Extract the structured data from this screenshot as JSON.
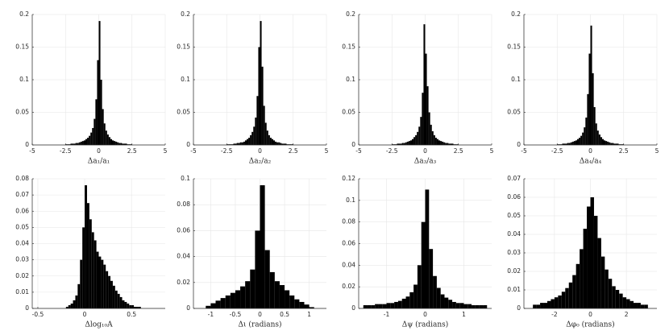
{
  "chart_data": [
    {
      "type": "histogram",
      "xlabel": "Δa₁/a₁",
      "color": "#000000",
      "grid": true,
      "xlim": [
        -5,
        5
      ],
      "xticks": [
        -5,
        -2.5,
        0,
        2.5,
        5
      ],
      "ylim": [
        0,
        0.2
      ],
      "yticks": [
        0,
        0.05,
        0.1,
        0.15,
        0.2
      ],
      "bins": [
        -2.5,
        -2.375,
        -2.25,
        -2.125,
        -2,
        -1.875,
        -1.75,
        -1.625,
        -1.5,
        -1.375,
        -1.25,
        -1.125,
        -1,
        -0.875,
        -0.75,
        -0.625,
        -0.5,
        -0.375,
        -0.25,
        -0.125,
        0,
        0.125,
        0.25,
        0.375,
        0.5,
        0.625,
        0.75,
        0.875,
        1,
        1.125,
        1.25,
        1.375,
        1.5,
        1.625,
        1.75,
        1.875,
        2,
        2.125,
        2.25,
        2.375,
        2.5
      ],
      "values": [
        0.001,
        0.001,
        0.001,
        0.002,
        0.002,
        0.002,
        0.003,
        0.003,
        0.004,
        0.005,
        0.006,
        0.007,
        0.009,
        0.011,
        0.014,
        0.019,
        0.026,
        0.04,
        0.07,
        0.13,
        0.19,
        0.1,
        0.055,
        0.033,
        0.022,
        0.016,
        0.012,
        0.009,
        0.007,
        0.006,
        0.005,
        0.004,
        0.003,
        0.003,
        0.002,
        0.002,
        0.002,
        0.001,
        0.001,
        0.001
      ]
    },
    {
      "type": "histogram",
      "xlabel": "Δa₂/a₂",
      "color": "#000000",
      "grid": true,
      "xlim": [
        -5,
        5
      ],
      "xticks": [
        -5,
        -2.5,
        0,
        2.5,
        5
      ],
      "ylim": [
        0,
        0.2
      ],
      "yticks": [
        0,
        0.05,
        0.1,
        0.15,
        0.2
      ],
      "bins": [
        -2.5,
        -2.375,
        -2.25,
        -2.125,
        -2,
        -1.875,
        -1.75,
        -1.625,
        -1.5,
        -1.375,
        -1.25,
        -1.125,
        -1,
        -0.875,
        -0.75,
        -0.625,
        -0.5,
        -0.375,
        -0.25,
        -0.125,
        0,
        0.125,
        0.25,
        0.375,
        0.5,
        0.625,
        0.75,
        0.875,
        1,
        1.125,
        1.25,
        1.375,
        1.5,
        1.625,
        1.75,
        1.875,
        2,
        2.125,
        2.25,
        2.375,
        2.5
      ],
      "values": [
        0.001,
        0.001,
        0.001,
        0.001,
        0.002,
        0.002,
        0.003,
        0.003,
        0.004,
        0.004,
        0.005,
        0.007,
        0.009,
        0.011,
        0.015,
        0.02,
        0.028,
        0.042,
        0.075,
        0.15,
        0.19,
        0.12,
        0.06,
        0.034,
        0.022,
        0.015,
        0.011,
        0.009,
        0.007,
        0.005,
        0.004,
        0.004,
        0.003,
        0.002,
        0.002,
        0.002,
        0.001,
        0.001,
        0.001,
        0.001
      ]
    },
    {
      "type": "histogram",
      "xlabel": "Δa₃/a₃",
      "color": "#000000",
      "grid": true,
      "xlim": [
        -5,
        5
      ],
      "xticks": [
        -5,
        -2.5,
        0,
        2.5,
        5
      ],
      "ylim": [
        0,
        0.2
      ],
      "yticks": [
        0,
        0.05,
        0.1,
        0.15,
        0.2
      ],
      "bins": [
        -2.5,
        -2.375,
        -2.25,
        -2.125,
        -2,
        -1.875,
        -1.75,
        -1.625,
        -1.5,
        -1.375,
        -1.25,
        -1.125,
        -1,
        -0.875,
        -0.75,
        -0.625,
        -0.5,
        -0.375,
        -0.25,
        -0.125,
        0,
        0.125,
        0.25,
        0.375,
        0.5,
        0.625,
        0.75,
        0.875,
        1,
        1.125,
        1.25,
        1.375,
        1.5,
        1.625,
        1.75,
        1.875,
        2,
        2.125,
        2.25,
        2.375,
        2.5
      ],
      "values": [
        0.001,
        0.001,
        0.001,
        0.002,
        0.002,
        0.002,
        0.003,
        0.003,
        0.004,
        0.005,
        0.006,
        0.007,
        0.009,
        0.012,
        0.015,
        0.02,
        0.028,
        0.043,
        0.08,
        0.185,
        0.14,
        0.09,
        0.05,
        0.031,
        0.021,
        0.015,
        0.011,
        0.009,
        0.007,
        0.006,
        0.005,
        0.004,
        0.003,
        0.003,
        0.002,
        0.002,
        0.002,
        0.001,
        0.001,
        0.001
      ]
    },
    {
      "type": "histogram",
      "xlabel": "Δa₄/a₄",
      "color": "#000000",
      "grid": true,
      "xlim": [
        -5,
        5
      ],
      "xticks": [
        -5,
        -2.5,
        0,
        2.5,
        5
      ],
      "ylim": [
        0,
        0.2
      ],
      "yticks": [
        0,
        0.05,
        0.1,
        0.15,
        0.2
      ],
      "bins": [
        -2.5,
        -2.375,
        -2.25,
        -2.125,
        -2,
        -1.875,
        -1.75,
        -1.625,
        -1.5,
        -1.375,
        -1.25,
        -1.125,
        -1,
        -0.875,
        -0.75,
        -0.625,
        -0.5,
        -0.375,
        -0.25,
        -0.125,
        0,
        0.125,
        0.25,
        0.375,
        0.5,
        0.625,
        0.75,
        0.875,
        1,
        1.125,
        1.25,
        1.375,
        1.5,
        1.625,
        1.75,
        1.875,
        2,
        2.125,
        2.25,
        2.375,
        2.5
      ],
      "values": [
        0.001,
        0.001,
        0.001,
        0.002,
        0.002,
        0.002,
        0.003,
        0.003,
        0.004,
        0.005,
        0.006,
        0.007,
        0.009,
        0.011,
        0.014,
        0.019,
        0.027,
        0.042,
        0.078,
        0.14,
        0.183,
        0.11,
        0.058,
        0.033,
        0.022,
        0.016,
        0.012,
        0.009,
        0.007,
        0.006,
        0.005,
        0.004,
        0.003,
        0.003,
        0.002,
        0.002,
        0.002,
        0.001,
        0.001,
        0.001
      ]
    },
    {
      "type": "histogram",
      "xlabel": "Δlog₁₀A",
      "color": "#000000",
      "grid": true,
      "xlim": [
        -0.56,
        0.86
      ],
      "xticks": [
        -0.5,
        0,
        0.5
      ],
      "ylim": [
        0,
        0.08
      ],
      "yticks": [
        0,
        0.01,
        0.02,
        0.03,
        0.04,
        0.05,
        0.06,
        0.07,
        0.08
      ],
      "bins": [
        -0.2,
        -0.175,
        -0.15,
        -0.125,
        -0.1,
        -0.075,
        -0.05,
        -0.025,
        0,
        0.025,
        0.05,
        0.075,
        0.1,
        0.125,
        0.15,
        0.175,
        0.2,
        0.225,
        0.25,
        0.275,
        0.3,
        0.325,
        0.35,
        0.375,
        0.4,
        0.425,
        0.45,
        0.475,
        0.5,
        0.525,
        0.55,
        0.575,
        0.6
      ],
      "values": [
        0.001,
        0.002,
        0.003,
        0.005,
        0.008,
        0.015,
        0.03,
        0.05,
        0.076,
        0.065,
        0.055,
        0.047,
        0.042,
        0.035,
        0.032,
        0.03,
        0.027,
        0.023,
        0.02,
        0.017,
        0.014,
        0.011,
        0.009,
        0.007,
        0.005,
        0.004,
        0.003,
        0.002,
        0.002,
        0.001,
        0.001,
        0.001
      ]
    },
    {
      "type": "histogram",
      "xlabel": "Δι (radians)",
      "color": "#000000",
      "grid": true,
      "xlim": [
        -1.35,
        1.35
      ],
      "xticks": [
        -1,
        -0.5,
        0,
        0.5,
        1
      ],
      "ylim": [
        0,
        0.1
      ],
      "yticks": [
        0,
        0.02,
        0.04,
        0.06,
        0.08,
        0.1
      ],
      "bins": [
        -1.1,
        -1,
        -0.9,
        -0.8,
        -0.7,
        -0.6,
        -0.5,
        -0.4,
        -0.3,
        -0.2,
        -0.1,
        0,
        0.1,
        0.2,
        0.3,
        0.4,
        0.5,
        0.6,
        0.7,
        0.8,
        0.9,
        1,
        1.1
      ],
      "values": [
        0.002,
        0.004,
        0.006,
        0.008,
        0.01,
        0.012,
        0.014,
        0.017,
        0.021,
        0.03,
        0.06,
        0.095,
        0.045,
        0.028,
        0.021,
        0.018,
        0.014,
        0.01,
        0.007,
        0.005,
        0.003,
        0.001
      ]
    },
    {
      "type": "histogram",
      "xlabel": "Δψ (radians)",
      "color": "#000000",
      "grid": true,
      "xlim": [
        -1.72,
        1.72
      ],
      "xticks": [
        -1,
        0,
        1
      ],
      "ylim": [
        0,
        0.12
      ],
      "yticks": [
        0,
        0.02,
        0.04,
        0.06,
        0.08,
        0.1,
        0.12
      ],
      "bins": [
        -1.6,
        -1.5,
        -1.4,
        -1.3,
        -1.2,
        -1.1,
        -1,
        -0.9,
        -0.8,
        -0.7,
        -0.6,
        -0.5,
        -0.4,
        -0.3,
        -0.2,
        -0.1,
        0,
        0.1,
        0.2,
        0.3,
        0.4,
        0.5,
        0.6,
        0.7,
        0.8,
        0.9,
        1,
        1.1,
        1.2,
        1.3,
        1.4,
        1.5,
        1.6
      ],
      "values": [
        0.003,
        0.003,
        0.003,
        0.004,
        0.004,
        0.004,
        0.005,
        0.005,
        0.006,
        0.007,
        0.009,
        0.011,
        0.015,
        0.022,
        0.04,
        0.08,
        0.11,
        0.055,
        0.03,
        0.019,
        0.013,
        0.01,
        0.008,
        0.006,
        0.005,
        0.005,
        0.004,
        0.004,
        0.003,
        0.003,
        0.003,
        0.003
      ]
    },
    {
      "type": "histogram",
      "xlabel": "Δφ₀ (radians)",
      "color": "#000000",
      "grid": true,
      "xlim": [
        -3.7,
        3.7
      ],
      "xticks": [
        -2,
        0,
        2
      ],
      "ylim": [
        0,
        0.07
      ],
      "yticks": [
        0,
        0.01,
        0.02,
        0.03,
        0.04,
        0.05,
        0.06,
        0.07
      ],
      "bins": [
        -3.2,
        -3,
        -2.8,
        -2.6,
        -2.4,
        -2.2,
        -2,
        -1.8,
        -1.6,
        -1.4,
        -1.2,
        -1,
        -0.8,
        -0.6,
        -0.4,
        -0.2,
        0,
        0.2,
        0.4,
        0.6,
        0.8,
        1,
        1.2,
        1.4,
        1.6,
        1.8,
        2,
        2.2,
        2.4,
        2.6,
        2.8,
        3,
        3.2
      ],
      "values": [
        0.002,
        0.002,
        0.003,
        0.003,
        0.004,
        0.005,
        0.006,
        0.007,
        0.009,
        0.011,
        0.014,
        0.018,
        0.024,
        0.032,
        0.043,
        0.055,
        0.06,
        0.05,
        0.038,
        0.028,
        0.021,
        0.016,
        0.012,
        0.01,
        0.008,
        0.006,
        0.005,
        0.004,
        0.003,
        0.003,
        0.002,
        0.002
      ]
    }
  ]
}
